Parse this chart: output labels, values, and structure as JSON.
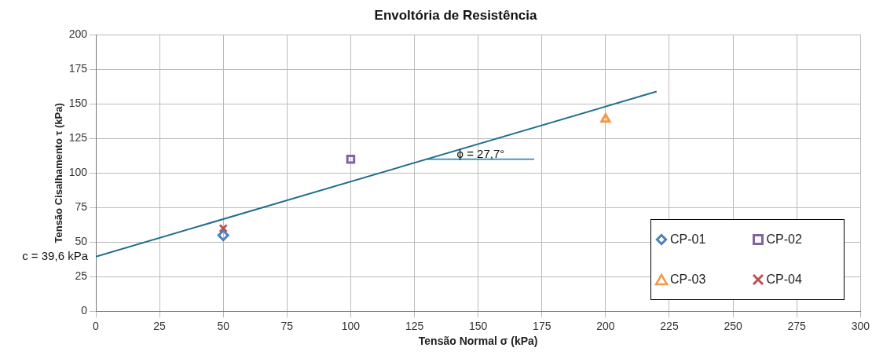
{
  "chart_data": {
    "type": "scatter",
    "title": "Envoltória de Resistência",
    "xlabel": "Tensão Normal σ (kPa)",
    "ylabel": "Tensão Cisalhamento τ (kPa)",
    "xlim": [
      0,
      300
    ],
    "xticks": [
      0,
      25,
      50,
      75,
      100,
      125,
      150,
      175,
      200,
      225,
      250,
      275,
      300
    ],
    "ylim": [
      0,
      200
    ],
    "yticks": [
      0,
      25,
      50,
      75,
      100,
      125,
      150,
      175,
      200
    ],
    "grid": true,
    "legend": "bottom right",
    "series": [
      {
        "name": "CP-01",
        "color": "#4f81bd",
        "marker": "diamond",
        "x": [
          50
        ],
        "values": [
          55
        ]
      },
      {
        "name": "CP-02",
        "color": "#8064a2",
        "marker": "square",
        "x": [
          100
        ],
        "values": [
          110
        ]
      },
      {
        "name": "CP-03",
        "color": "#f79646",
        "marker": "triangle",
        "x": [
          200
        ],
        "values": [
          139
        ]
      },
      {
        "name": "CP-04",
        "color": "#c0504d",
        "marker": "cross",
        "x": [
          50
        ],
        "values": [
          60
        ]
      },
      {
        "type": "line",
        "color": "#1f6e8c",
        "marker": "none",
        "x": [
          0,
          220
        ],
        "values": [
          39.6,
          159
        ]
      },
      {
        "type": "line",
        "color": "#4a9ab8",
        "marker": "none",
        "x": [
          130,
          172
        ],
        "values": [
          110,
          110
        ]
      }
    ],
    "annotations": [
      {
        "text": "c = 39,6 kPa",
        "x": 0,
        "y": 39.6
      },
      {
        "text": "ϕ = 27,7°",
        "x": 151,
        "y": 110
      }
    ]
  }
}
